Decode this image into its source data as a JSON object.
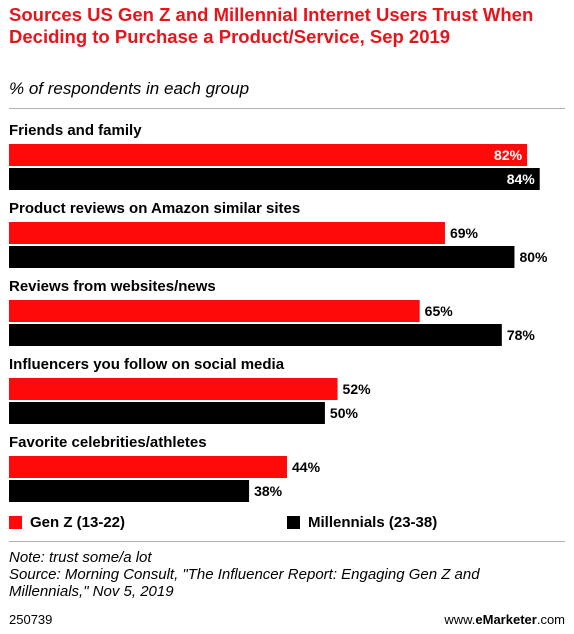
{
  "header": {
    "title": "Sources US Gen Z and Millennial Internet Users Trust When Deciding to Purchase a Product/Service, Sep 2019",
    "subtitle": "% of respondents in each group"
  },
  "chart_data": {
    "type": "bar",
    "orientation": "horizontal",
    "categories": [
      "Friends and family",
      "Product reviews on Amazon similar sites",
      "Reviews from websites/news",
      "Influencers you follow on social media",
      "Favorite celebrities/athletes"
    ],
    "series": [
      {
        "name": "Gen Z (13-22)",
        "color": "#ff0a0a",
        "values": [
          82,
          69,
          65,
          52,
          44
        ]
      },
      {
        "name": "Millennials (23-38)",
        "color": "#000000",
        "values": [
          84,
          80,
          78,
          50,
          38
        ]
      }
    ],
    "value_suffix": "%",
    "xlim": [
      0,
      88
    ],
    "grid": false,
    "legend_position": "bottom"
  },
  "notes": {
    "lines": [
      "Note: trust some/a lot",
      "Source: Morning Consult, \"The Influencer Report: Engaging Gen Z and",
      "Millennials,\" Nov 5, 2019"
    ]
  },
  "footer": {
    "id": "250739",
    "brand_prefix": "www.",
    "brand_name": "eMarketer",
    "brand_suffix": ".com"
  }
}
